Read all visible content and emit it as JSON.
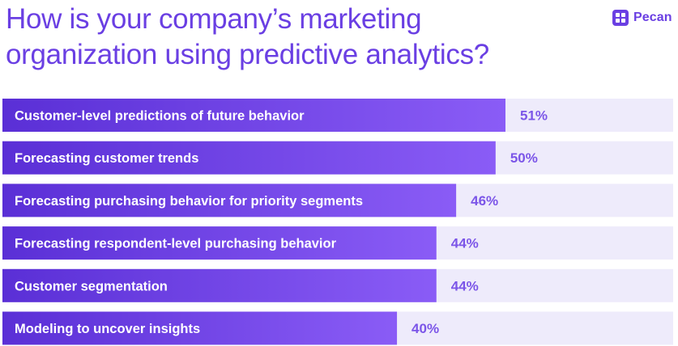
{
  "title": "How is your company’s marketing organization using predictive analytics?",
  "brand": {
    "name": "Pecan",
    "logo_icon": "pecan-logo-icon"
  },
  "colors": {
    "accent": "#6a3fe3",
    "bar_fill_start": "#5a2fd6",
    "bar_fill_end": "#8a5cf6",
    "track": "#eeebfb",
    "value_text": "#7b55e8"
  },
  "chart_data": {
    "type": "bar",
    "orientation": "horizontal",
    "title": "How is your company’s marketing organization using predictive analytics?",
    "categories": [
      "Customer-level predictions of future behavior",
      "Forecasting customer trends",
      "Forecasting purchasing behavior for priority segments",
      "Forecasting respondent-level purchasing behavior",
      "Customer segmentation",
      "Modeling to uncover insights"
    ],
    "values": [
      51,
      50,
      46,
      44,
      44,
      40
    ],
    "value_labels": [
      "51%",
      "50%",
      "46%",
      "44%",
      "44%",
      "40%"
    ],
    "unit": "%",
    "xlim": [
      0,
      68
    ],
    "xlabel": "",
    "ylabel": "",
    "grid": false,
    "legend": "none"
  }
}
